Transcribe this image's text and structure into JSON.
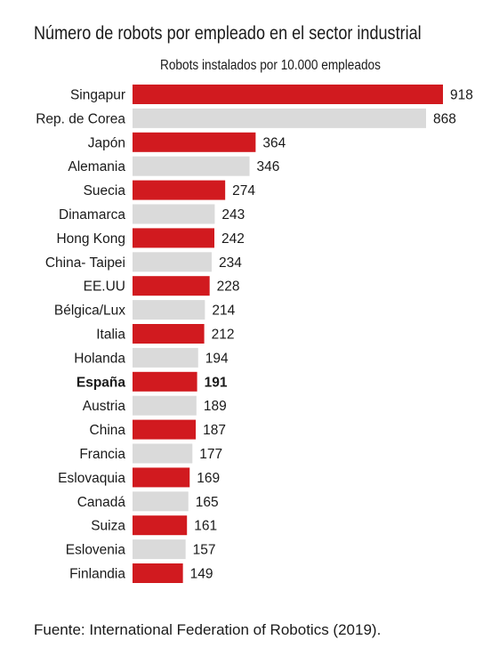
{
  "chart_data": {
    "type": "bar",
    "orientation": "horizontal",
    "title": "Número de robots por empleado en el sector industrial",
    "subtitle": "Robots instalados por 10.000 empleados",
    "categories": [
      "Singapur",
      "Rep. de  Corea",
      "Japón",
      "Alemania",
      "Suecia",
      "Dinamarca",
      "Hong Kong",
      "China- Taipei",
      "EE.UU",
      "Bélgica/Lux",
      "Italia",
      "Holanda",
      "España",
      "Austria",
      "China",
      "Francia",
      "Eslovaquia",
      "Canadá",
      "Suiza",
      "Eslovenia",
      "Finlandia"
    ],
    "values": [
      918,
      868,
      364,
      346,
      274,
      243,
      242,
      234,
      228,
      214,
      212,
      194,
      191,
      189,
      187,
      177,
      169,
      165,
      161,
      157,
      149
    ],
    "value_labels": [
      "918",
      "868",
      "364",
      "346",
      "274",
      "243",
      "242",
      "234",
      "228",
      "214",
      "212",
      "194",
      "191",
      "189",
      "187",
      "177",
      "169",
      "165",
      "161",
      "157",
      "149"
    ],
    "highlight": "España",
    "xlim": [
      0,
      918
    ],
    "grid": false,
    "colors": {
      "odd_rows": "#d11a1f",
      "even_rows": "#dadada"
    },
    "source": "Fuente: International Federation of Robotics (2019)."
  }
}
